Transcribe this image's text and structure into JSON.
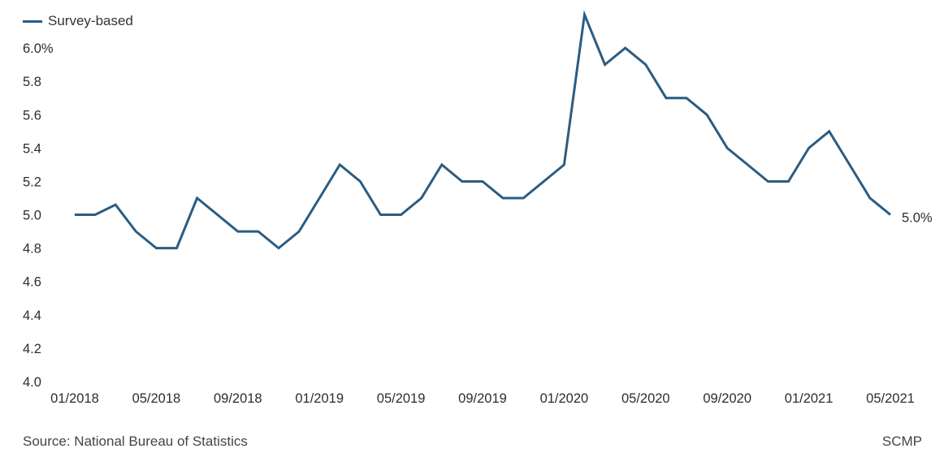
{
  "chart_data": {
    "type": "line",
    "ylim": [
      4.0,
      6.2
    ],
    "y_ticks": [
      4.0,
      4.2,
      4.4,
      4.6,
      4.8,
      5.0,
      5.2,
      5.4,
      5.6,
      5.8,
      6.0
    ],
    "y_tick_labels": [
      "4.0",
      "4.2",
      "4.4",
      "4.6",
      "4.8",
      "5.0",
      "5.2",
      "5.4",
      "5.6",
      "5.8",
      "6.0%"
    ],
    "x_tick_labels": [
      "01/2018",
      "05/2018",
      "09/2018",
      "01/2019",
      "05/2019",
      "09/2019",
      "01/2020",
      "05/2020",
      "09/2020",
      "01/2021",
      "05/2021"
    ],
    "x": [
      "01/2018",
      "02/2018",
      "03/2018",
      "04/2018",
      "05/2018",
      "06/2018",
      "07/2018",
      "08/2018",
      "09/2018",
      "10/2018",
      "11/2018",
      "12/2018",
      "01/2019",
      "02/2019",
      "03/2019",
      "04/2019",
      "05/2019",
      "06/2019",
      "07/2019",
      "08/2019",
      "09/2019",
      "10/2019",
      "11/2019",
      "12/2019",
      "01/2020",
      "02/2020",
      "03/2020",
      "04/2020",
      "05/2020",
      "06/2020",
      "07/2020",
      "08/2020",
      "09/2020",
      "10/2020",
      "11/2020",
      "12/2020",
      "01/2021",
      "02/2021",
      "03/2021",
      "04/2021",
      "05/2021"
    ],
    "series": [
      {
        "name": "Survey-based",
        "values": [
          5.0,
          5.0,
          5.06,
          4.9,
          4.8,
          4.8,
          5.1,
          5.0,
          4.9,
          4.9,
          4.8,
          4.9,
          5.1,
          5.3,
          5.2,
          5.0,
          5.0,
          5.1,
          5.3,
          5.2,
          5.2,
          5.1,
          5.1,
          5.2,
          5.3,
          6.2,
          5.9,
          6.0,
          5.9,
          5.7,
          5.7,
          5.6,
          5.4,
          5.3,
          5.2,
          5.2,
          5.4,
          5.5,
          5.3,
          5.1,
          5.0
        ]
      }
    ],
    "end_label": "5.0%",
    "grid": false,
    "legend_position": "top-left"
  },
  "colors": {
    "line": "#2b5c82"
  },
  "footer": {
    "source": "Source: National Bureau of Statistics",
    "credit": "SCMP"
  }
}
